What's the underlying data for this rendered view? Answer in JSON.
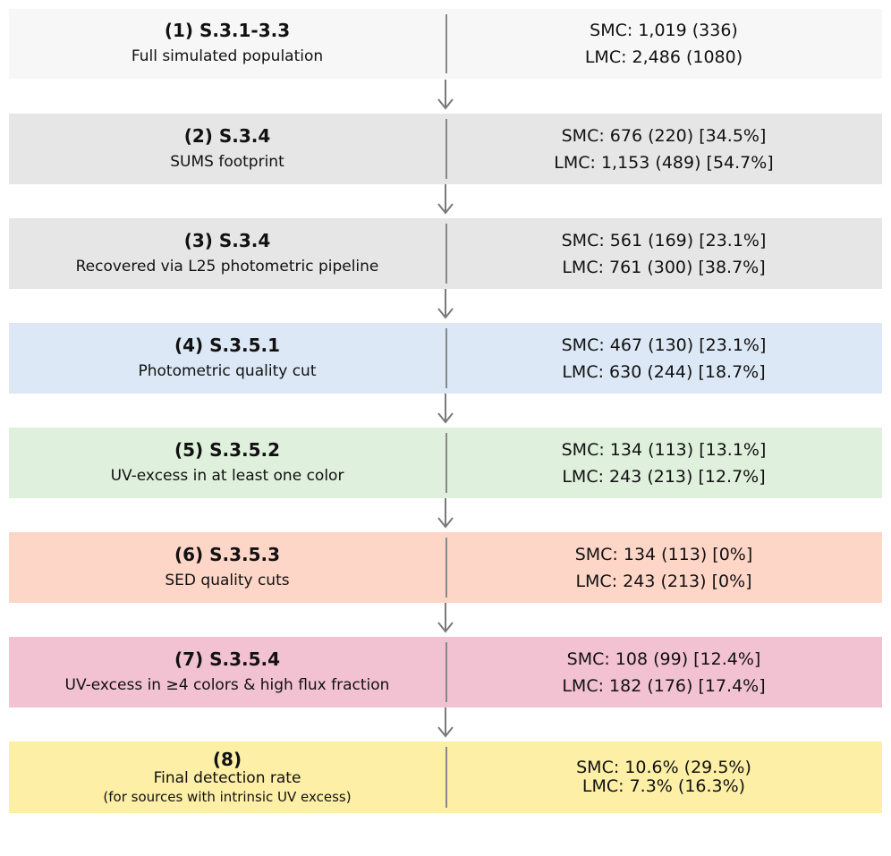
{
  "steps": [
    {
      "title": "(1) S.3.1-3.3",
      "subtitle": "Full simulated population",
      "smc": "SMC: 1,019 (336)",
      "lmc": "LMC: 2,486 (1080)",
      "color": "#f7f7f7"
    },
    {
      "title": "(2) S.3.4",
      "subtitle": "SUMS footprint",
      "smc": "SMC: 676 (220) [34.5%]",
      "lmc": "LMC: 1,153 (489) [54.7%]",
      "color": "#e6e6e6"
    },
    {
      "title": "(3) S.3.4",
      "subtitle": "Recovered via L25 photometric pipeline",
      "smc": "SMC: 561 (169) [23.1%]",
      "lmc": "LMC: 761 (300) [38.7%]",
      "color": "#e6e6e6"
    },
    {
      "title": "(4) S.3.5.1",
      "subtitle": "Photometric quality cut",
      "smc": "SMC: 467 (130) [23.1%]",
      "lmc": "LMC: 630 (244) [18.7%]",
      "color": "#dce8f5"
    },
    {
      "title": "(5) S.3.5.2",
      "subtitle": "UV-excess in at least one color",
      "smc": "SMC: 134 (113) [13.1%]",
      "lmc": "LMC: 243 (213) [12.7%]",
      "color": "#dff0dc"
    },
    {
      "title": "(6) S.3.5.3",
      "subtitle": "SED quality cuts",
      "smc": "SMC: 134 (113) [0%]",
      "lmc": "LMC: 243 (213) [0%]",
      "color": "#fdd6c8"
    },
    {
      "title": "(7) S.3.5.4",
      "subtitle": "UV-excess in ≥4 colors & high flux fraction",
      "smc": "SMC: 108 (99) [12.4%]",
      "lmc": "LMC: 182 (176) [17.4%]",
      "color": "#f2c1d2"
    }
  ],
  "final": {
    "title": "(8)",
    "subtitle": "Final detection rate",
    "note": "(for sources with intrinsic UV excess)",
    "smc": "SMC: 10.6% (29.5%)",
    "lmc": "LMC: 7.3% (16.3%)",
    "color": "#fdefa6"
  },
  "arrow_color": "#7a7a7a"
}
